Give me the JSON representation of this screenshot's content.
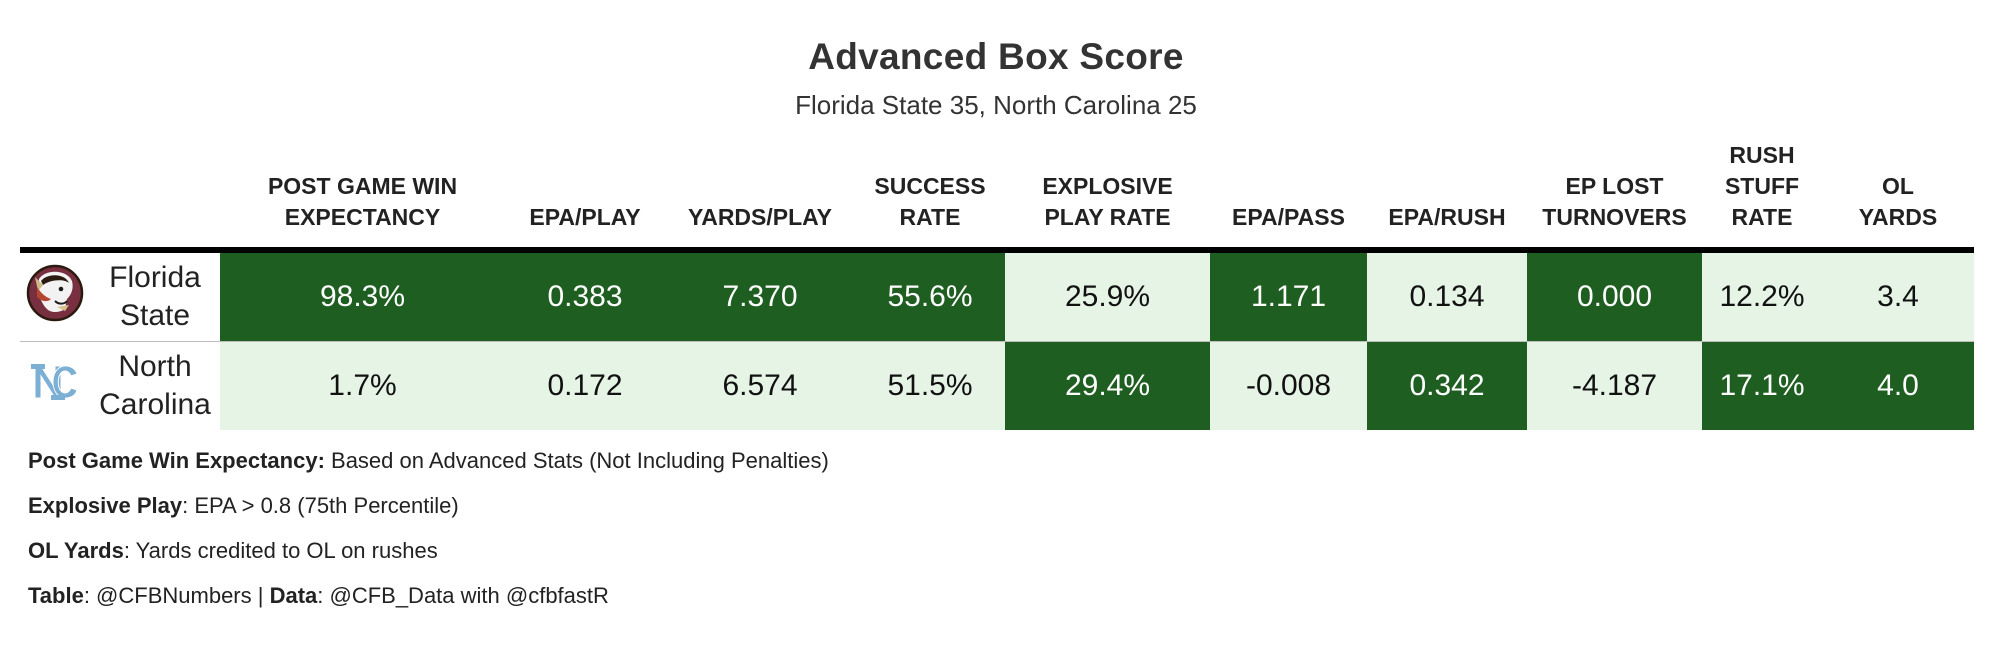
{
  "title": "Advanced Box Score",
  "subtitle": "Florida State 35, North Carolina 25",
  "columns": [
    "POST GAME WIN\nEXPECTANCY",
    "EPA/PLAY",
    "YARDS/PLAY",
    "SUCCESS\nRATE",
    "EXPLOSIVE\nPLAY RATE",
    "EPA/PASS",
    "EPA/RUSH",
    "EP LOST\nTURNOVERS",
    "RUSH\nSTUFF\nRATE",
    "OL\nYARDS"
  ],
  "rows": [
    {
      "team": "Florida\nState",
      "logo": "florida-state-seminole-head-icon",
      "values": [
        "98.3%",
        "0.383",
        "7.370",
        "55.6%",
        "25.9%",
        "1.171",
        "0.134",
        "0.000",
        "12.2%",
        "3.4"
      ],
      "shading": [
        "dark",
        "dark",
        "dark",
        "dark",
        "light",
        "dark",
        "light",
        "dark",
        "light",
        "light"
      ]
    },
    {
      "team": "North\nCarolina",
      "logo": "unc-nc-interlock-icon",
      "values": [
        "1.7%",
        "0.172",
        "6.574",
        "51.5%",
        "29.4%",
        "-0.008",
        "0.342",
        "-4.187",
        "17.1%",
        "4.0"
      ],
      "shading": [
        "light",
        "light",
        "light",
        "light",
        "dark",
        "light",
        "dark",
        "light",
        "dark",
        "dark"
      ]
    }
  ],
  "colors": {
    "dark_cell": "#1e5e20",
    "light_cell": "#e6f4e6",
    "unc_blue": "#7bafd4",
    "fsu_garnet": "#782f40"
  },
  "notes": [
    {
      "label": "Post Game Win Expectancy:",
      "text": " Based on Advanced Stats (Not Including Penalties)"
    },
    {
      "label": "Explosive Play",
      "text": ": EPA > 0.8 (75th Percentile)"
    },
    {
      "label": "OL Yards",
      "text": ": Yards credited to OL on rushes"
    }
  ],
  "credits": {
    "table_label": "Table",
    "table_text": ": @CFBNumbers | ",
    "data_label": "Data",
    "data_text": ": @CFB_Data with @cfbfastR"
  },
  "chart_data": {
    "type": "table",
    "title": "Advanced Box Score",
    "subtitle": "Florida State 35, North Carolina 25",
    "columns": [
      "POST GAME WIN EXPECTANCY",
      "EPA/PLAY",
      "YARDS/PLAY",
      "SUCCESS RATE",
      "EXPLOSIVE PLAY RATE",
      "EPA/PASS",
      "EPA/RUSH",
      "EP LOST TURNOVERS",
      "RUSH STUFF RATE",
      "OL YARDS"
    ],
    "rows": [
      {
        "team": "Florida State",
        "values": [
          98.3,
          0.383,
          7.37,
          55.6,
          25.9,
          1.171,
          0.134,
          0.0,
          12.2,
          3.4
        ]
      },
      {
        "team": "North Carolina",
        "values": [
          1.7,
          0.172,
          6.574,
          51.5,
          29.4,
          -0.008,
          0.342,
          -4.187,
          17.1,
          4.0
        ]
      }
    ]
  }
}
